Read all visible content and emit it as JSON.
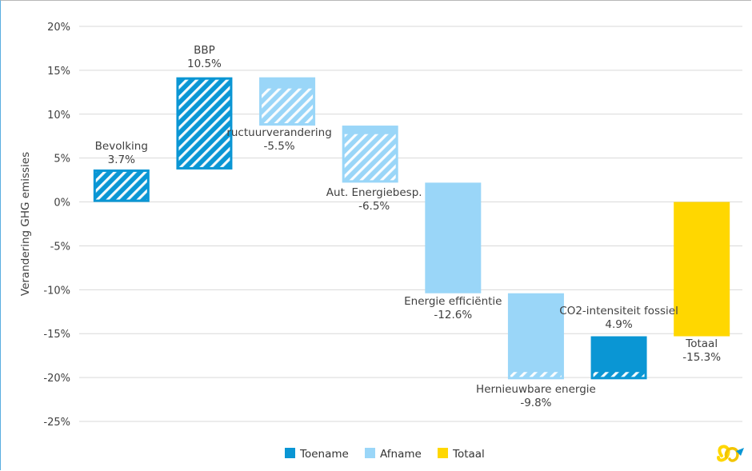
{
  "chart_data": {
    "type": "bar",
    "subtype": "waterfall",
    "ylabel": "Verandering GHG emissies",
    "ylim": [
      -25,
      20
    ],
    "yticks": [
      "20%",
      "15%",
      "10%",
      "5%",
      "0%",
      "-5%",
      "-10%",
      "-15%",
      "-20%",
      "-25%"
    ],
    "grid": true,
    "legend_position": "bottom",
    "colors": {
      "Toename": "#0a96d4",
      "Afname": "#9ad6f8",
      "Totaal": "#ffd700"
    },
    "legend": [
      {
        "name": "Toename",
        "color": "#0a96d4"
      },
      {
        "name": "Afname",
        "color": "#9ad6f8"
      },
      {
        "name": "Totaal",
        "color": "#ffd700"
      }
    ],
    "bars": [
      {
        "category": "Bevolking",
        "value_label": "3.7%",
        "value": 3.7,
        "start": 0,
        "end": 3.7,
        "kind": "Toename",
        "hatch_range": [
          0,
          3.7
        ]
      },
      {
        "category": "BBP",
        "value_label": "10.5%",
        "value": 10.5,
        "start": 3.7,
        "end": 14.2,
        "kind": "Toename",
        "hatch_range": [
          3.7,
          14.2
        ]
      },
      {
        "category": "ructuurverandering",
        "value_label": "-5.5%",
        "value": -5.5,
        "start": 14.2,
        "end": 8.7,
        "kind": "Afname",
        "hatch_range": [
          8.7,
          13.2
        ]
      },
      {
        "category": "Aut. Energiebesp.",
        "value_label": "-6.5%",
        "value": -6.5,
        "start": 8.7,
        "end": 2.2,
        "kind": "Afname",
        "hatch_range": [
          2.2,
          8.0
        ]
      },
      {
        "category": "Energie efficiëntie",
        "value_label": "-12.6%",
        "value": -12.6,
        "start": 2.2,
        "end": -10.4,
        "kind": "Afname",
        "hatch_range": null
      },
      {
        "category": "Hernieuwbare energie",
        "value_label": "-9.8%",
        "value": -9.8,
        "start": -10.4,
        "end": -20.2,
        "kind": "Afname",
        "hatch_range": [
          -20.2,
          -19.1
        ]
      },
      {
        "category": "CO2-intensiteit fossiel",
        "value_label": "4.9%",
        "value": 4.9,
        "start": -20.2,
        "end": -15.3,
        "kind": "Toename",
        "hatch_range": [
          -20.2,
          -19.1
        ]
      },
      {
        "category": "Totaal",
        "value_label": "-15.3%",
        "value": -15.3,
        "start": 0,
        "end": -15.3,
        "kind": "Totaal",
        "hatch_range": null
      }
    ]
  },
  "logo": {
    "name": "brand-logo-icon"
  }
}
